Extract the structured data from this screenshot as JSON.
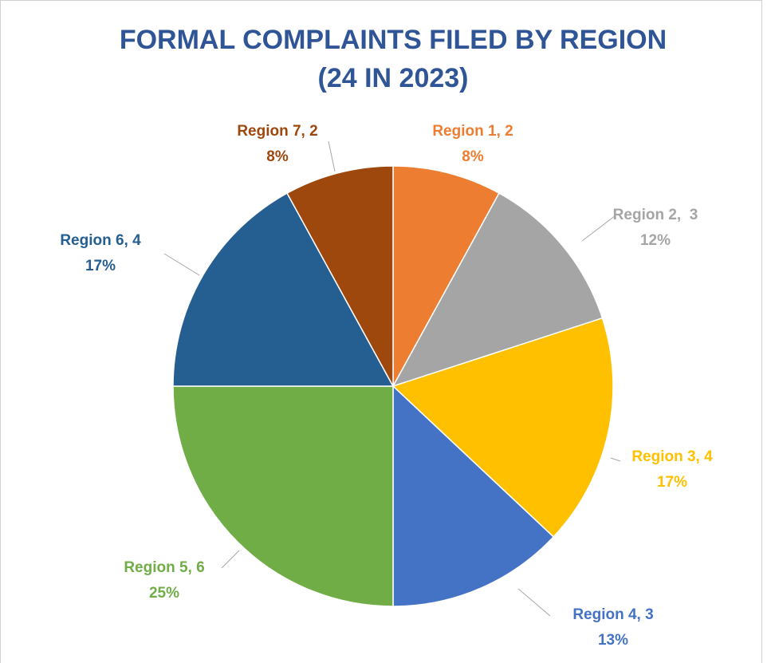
{
  "chart_data": {
    "type": "pie",
    "title": [
      "FORMAL COMPLAINTS FILED BY REGION",
      "(24 IN 2023)"
    ],
    "categories": [
      "Region 1, 2",
      "Region 2,  3",
      "Region 3, 4",
      "Region 4, 3",
      "Region 5, 6",
      "Region 6, 4",
      "Region 7, 2"
    ],
    "values": [
      8,
      12,
      17,
      13,
      25,
      17,
      8
    ],
    "value_labels": [
      "8%",
      "12%",
      "17%",
      "13%",
      "25%",
      "17%",
      "8%"
    ],
    "colors": [
      "#ED7D31",
      "#A5A5A5",
      "#FFC000",
      "#4472C4",
      "#70AD47",
      "#255E91",
      "#9E480E"
    ]
  }
}
